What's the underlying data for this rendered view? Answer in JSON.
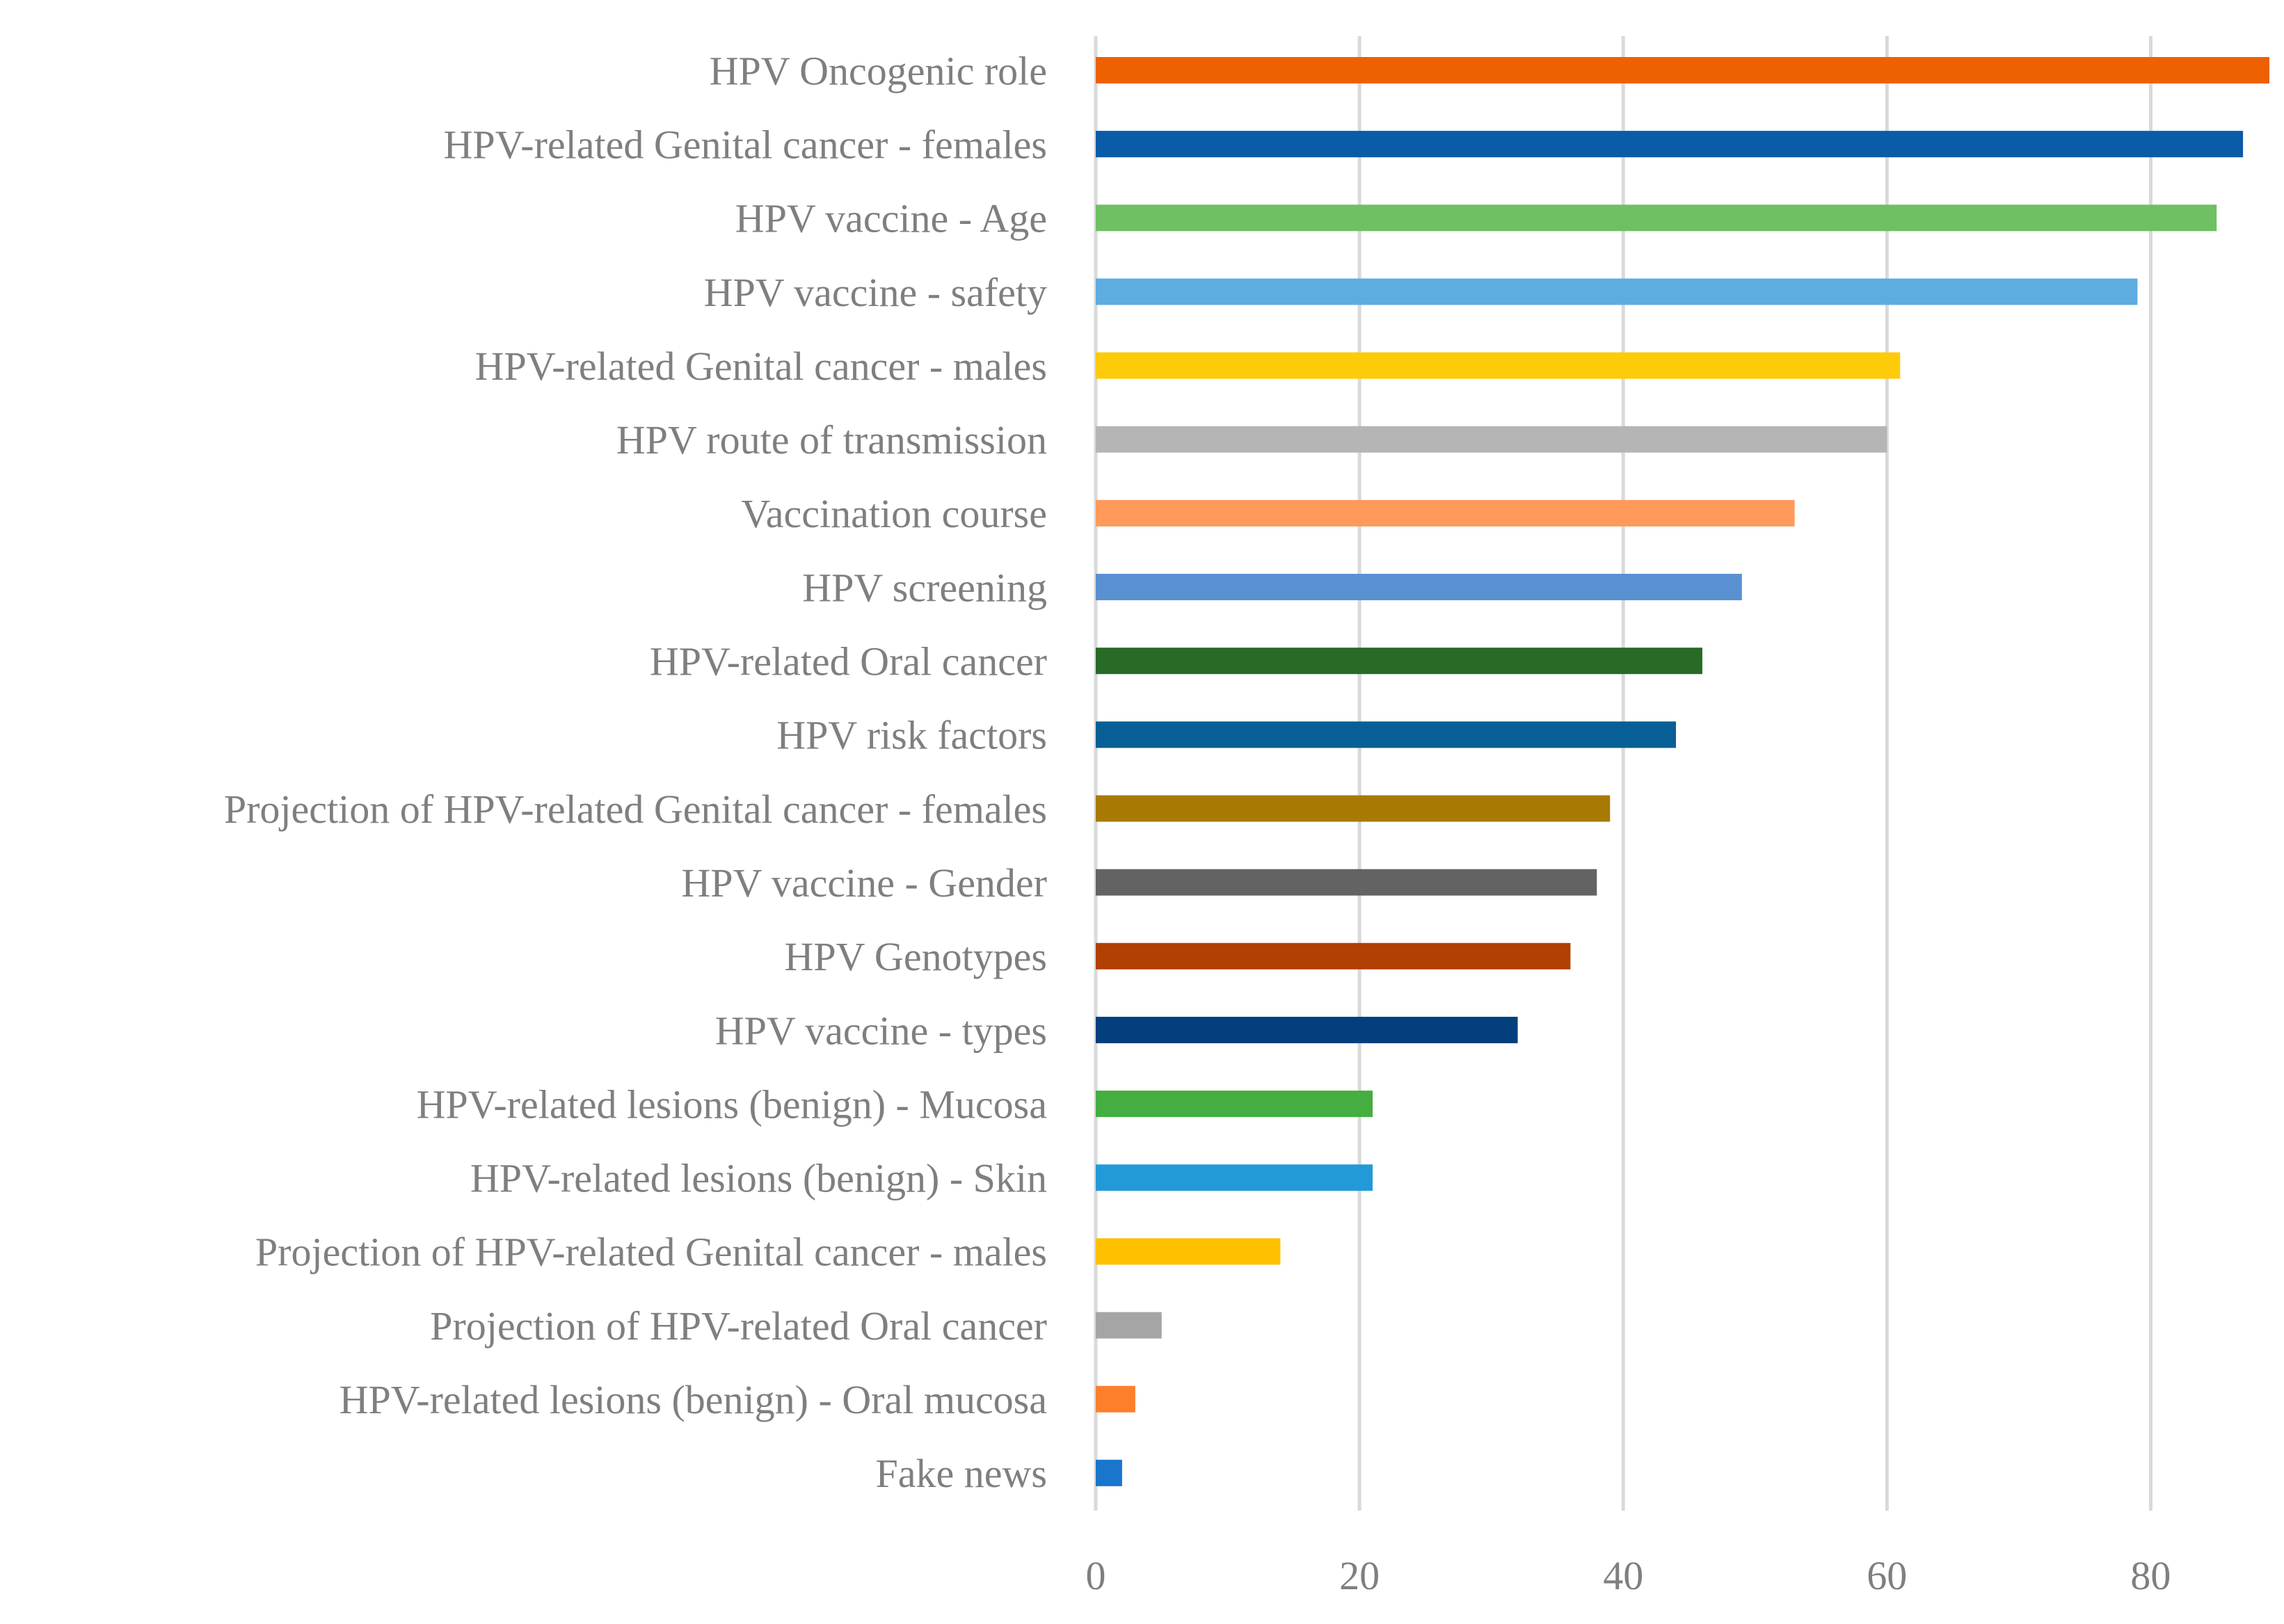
{
  "chart_data": {
    "type": "bar",
    "orientation": "horizontal",
    "title": "",
    "xlabel": "",
    "ylabel": "",
    "xlim": [
      0,
      89
    ],
    "xticks": [
      0,
      20,
      40,
      60,
      80
    ],
    "grid": "vertical",
    "legend": "none",
    "categories": [
      "HPV Oncogenic role",
      "HPV-related Genital cancer - females",
      "HPV vaccine - Age",
      "HPV vaccine - safety",
      "HPV-related Genital cancer - males",
      "HPV route of transmission",
      "Vaccination course",
      "HPV screening",
      "HPV-related Oral cancer",
      "HPV risk factors",
      "Projection of HPV-related Genital cancer - females",
      "HPV vaccine - Gender",
      "HPV Genotypes",
      "HPV vaccine - types",
      "HPV-related lesions (benign) - Mucosa",
      "HPV-related lesions (benign) - Skin",
      "Projection of HPV-related Genital cancer - males",
      "Projection of HPV-related Oral cancer",
      "HPV-related lesions (benign) - Oral mucosa",
      "Fake news"
    ],
    "values": [
      89,
      87,
      85,
      79,
      61,
      60,
      53,
      49,
      46,
      44,
      39,
      38,
      36,
      32,
      21,
      21,
      14,
      5,
      3,
      2
    ],
    "colors": [
      "#ee6100",
      "#0a5ba8",
      "#6fbf63",
      "#5dade0",
      "#fdcb09",
      "#b5b5b5",
      "#ff9a5a",
      "#5990d2",
      "#276b26",
      "#085f96",
      "#a87a04",
      "#636363",
      "#b14002",
      "#023f7c",
      "#45ae40",
      "#229ad7",
      "#ffc000",
      "#a5a5a5",
      "#fd7f2b",
      "#1a75cc"
    ],
    "gridline_color": "#d9d9d9",
    "label_color": "#7f7f7f"
  }
}
